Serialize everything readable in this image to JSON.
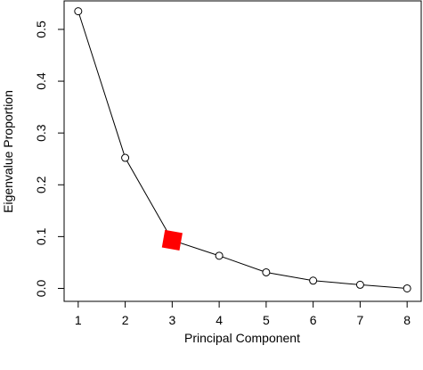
{
  "chart_data": {
    "type": "line",
    "xlabel": "Principal Component",
    "ylabel": "Eigenvalue Proportion",
    "x": [
      1,
      2,
      3,
      4,
      5,
      6,
      7,
      8
    ],
    "y": [
      0.535,
      0.252,
      0.093,
      0.063,
      0.031,
      0.015,
      0.007,
      0.0
    ],
    "xlim": [
      0.7,
      8.3
    ],
    "ylim": [
      -0.025,
      0.555
    ],
    "xticks": [
      1,
      2,
      3,
      4,
      5,
      6,
      7,
      8
    ],
    "yticks": [
      0.0,
      0.1,
      0.2,
      0.3,
      0.4,
      0.5
    ],
    "xtick_labels": [
      "1",
      "2",
      "3",
      "4",
      "5",
      "6",
      "7",
      "8"
    ],
    "ytick_labels": [
      "0.0",
      "0.1",
      "0.2",
      "0.3",
      "0.4",
      "0.5"
    ],
    "highlight": {
      "x": 3,
      "y": 0.093,
      "color": "#ff0000",
      "marker": "square"
    },
    "marker_style": "open-circle",
    "line_color": "#000000",
    "grid": false,
    "legend": "none"
  }
}
